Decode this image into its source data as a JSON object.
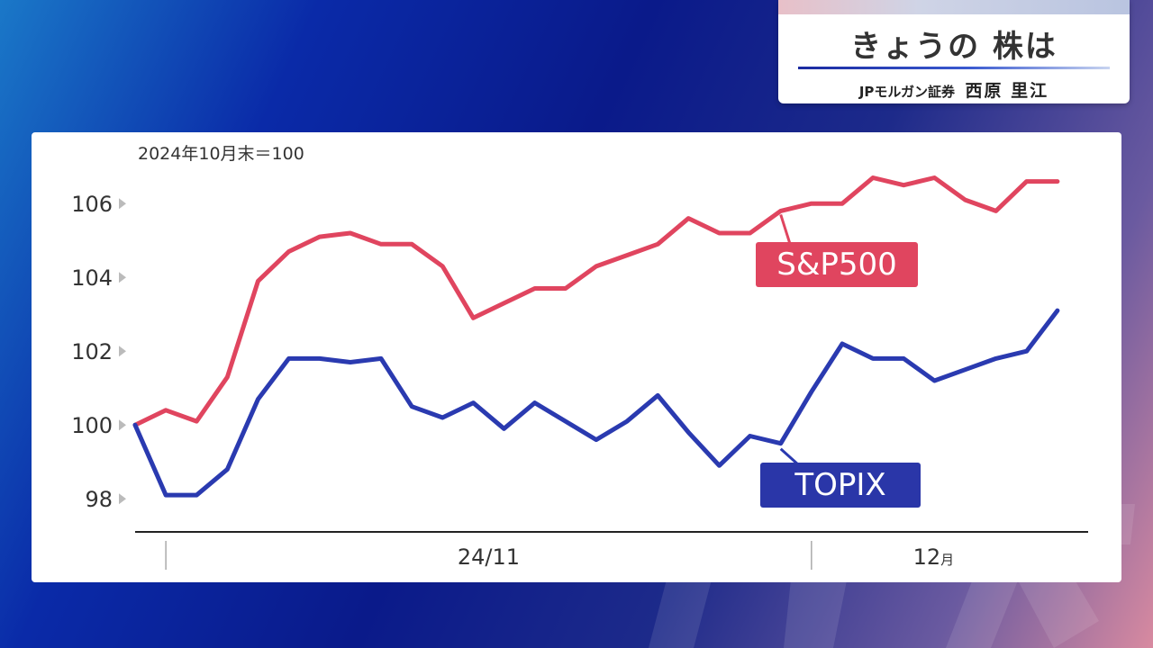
{
  "header": {
    "title": "きょうの 株は",
    "presenter_firm": "JPモルガン証券",
    "presenter_name": "西原 里江"
  },
  "chart_data": {
    "type": "line",
    "note": "2024年10月末＝100",
    "ylim": [
      97.2,
      107.2
    ],
    "yticks": [
      98,
      100,
      102,
      104,
      106
    ],
    "x": [
      1,
      2,
      3,
      4,
      5,
      6,
      7,
      8,
      9,
      10,
      11,
      12,
      13,
      14,
      15,
      16,
      17,
      18,
      19,
      20,
      21,
      22,
      23,
      24,
      25,
      26,
      27,
      28,
      29,
      30,
      31
    ],
    "xlim": [
      1,
      32
    ],
    "x_groups": [
      {
        "label": "24/11",
        "start": 2
      },
      {
        "label": "12",
        "suffix": "月",
        "start": 23
      }
    ],
    "series": [
      {
        "name": "S&P500",
        "color": "#e0455f",
        "label_bg": "#e0455f",
        "values": [
          100.0,
          100.4,
          100.1,
          101.3,
          103.9,
          104.7,
          105.1,
          105.2,
          104.9,
          104.9,
          104.3,
          102.9,
          103.3,
          103.7,
          103.7,
          104.3,
          104.6,
          104.9,
          105.6,
          105.2,
          105.2,
          105.8,
          106.0,
          106.0,
          106.7,
          106.5,
          106.7,
          106.1,
          105.8,
          106.6,
          106.6
        ],
        "callout_index": 21
      },
      {
        "name": "TOPIX",
        "color": "#2a3ab0",
        "label_bg": "#2a36a8",
        "values": [
          100.0,
          98.1,
          98.1,
          98.8,
          100.7,
          101.8,
          101.8,
          101.7,
          101.8,
          100.5,
          100.2,
          100.6,
          99.9,
          100.6,
          100.1,
          99.6,
          100.1,
          100.8,
          99.8,
          98.9,
          99.7,
          99.5,
          100.9,
          102.2,
          101.8,
          101.8,
          101.2,
          101.5,
          101.8,
          102.0,
          103.1
        ],
        "callout_index": 21
      }
    ]
  }
}
